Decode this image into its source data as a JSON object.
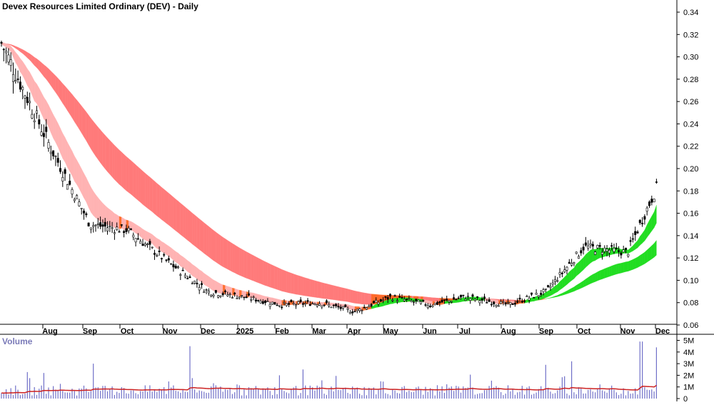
{
  "chart_data": {
    "type": "candlestick",
    "title": "Devex Resources Limited Ordinary (DEV) - Daily",
    "interval": "Daily",
    "price_axis": {
      "range": [
        0.06,
        0.34
      ],
      "ticks": [
        "0.34",
        "0.32",
        "0.30",
        "0.28",
        "0.26",
        "0.24",
        "0.22",
        "0.20",
        "0.18",
        "0.16",
        "0.14",
        "0.12",
        "0.10",
        "0.08",
        "0.06"
      ]
    },
    "time_axis": {
      "labels": [
        "Aug",
        "Sep",
        "Oct",
        "Nov",
        "Dec",
        "2025",
        "Feb",
        "Mar",
        "Apr",
        "May",
        "Jun",
        "Jul",
        "Aug",
        "Sep",
        "Oct",
        "Nov",
        "Dec"
      ]
    },
    "price_series": [
      {
        "month": "Jul",
        "close": 0.315
      },
      {
        "month": "Aug",
        "close": 0.22
      },
      {
        "month": "Sep",
        "close": 0.15
      },
      {
        "month": "Oct",
        "close": 0.145
      },
      {
        "month": "Nov",
        "close": 0.115
      },
      {
        "month": "Dec",
        "close": 0.09
      },
      {
        "month": "2025",
        "close": 0.085
      },
      {
        "month": "Feb",
        "close": 0.078
      },
      {
        "month": "Mar",
        "close": 0.08
      },
      {
        "month": "Apr",
        "close": 0.072
      },
      {
        "month": "May",
        "close": 0.085
      },
      {
        "month": "Jun",
        "close": 0.078
      },
      {
        "month": "Jul",
        "close": 0.085
      },
      {
        "month": "Aug",
        "close": 0.078
      },
      {
        "month": "Sep",
        "close": 0.09
      },
      {
        "month": "Oct",
        "close": 0.13
      },
      {
        "month": "Nov",
        "close": 0.125
      },
      {
        "month": "Dec",
        "close": 0.195
      }
    ],
    "short_term_ma_band": {
      "colors": {
        "falling": "#ffb3b3",
        "neutral": "#ff7030",
        "rising": "#22dd22"
      }
    },
    "long_term_ma_band": {
      "colors": {
        "falling": "#ff7a7a",
        "neutral": "#ff6a2a",
        "rising": "#22dd22"
      }
    },
    "volume_panel": {
      "title": "Volume",
      "ticks": [
        "5M",
        "4M",
        "3M",
        "2M",
        "1M",
        "0"
      ],
      "range": [
        0,
        5400000
      ],
      "average_line_color": "#cc2222",
      "bar_color": "#7070c8",
      "spikes": [
        {
          "month": "Aug",
          "value": 2200000
        },
        {
          "month": "Sep",
          "value": 3000000
        },
        {
          "month": "Nov",
          "value": 4500000
        },
        {
          "month": "Feb",
          "value": 2000000
        },
        {
          "month": "Mar",
          "value": 2500000
        },
        {
          "month": "Sep",
          "value": 2900000
        },
        {
          "month": "Oct",
          "value": 3200000
        },
        {
          "month": "Nov",
          "value": 4900000
        },
        {
          "month": "Dec",
          "value": 4400000
        }
      ]
    }
  }
}
